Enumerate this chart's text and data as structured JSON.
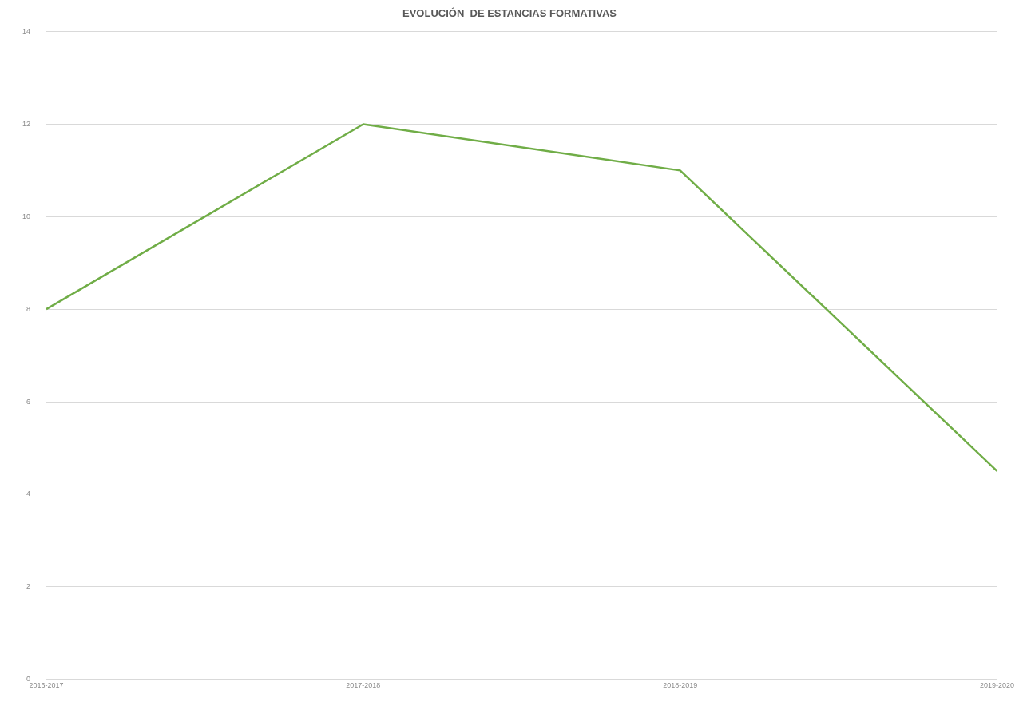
{
  "chart_data": {
    "type": "line",
    "title": "EVOLUCIÓN  DE ESTANCIAS FORMATIVAS",
    "categories": [
      "2016-2017",
      "2017-2018",
      "2018-2019",
      "2019-2020"
    ],
    "series": [
      {
        "color": "#70ad47",
        "values": [
          8,
          12,
          11,
          4.5
        ]
      }
    ],
    "ylim": [
      0,
      14
    ],
    "yticks": [
      0,
      2,
      4,
      6,
      8,
      10,
      12,
      14
    ],
    "grid": "y",
    "legend": false,
    "marker": "none"
  }
}
